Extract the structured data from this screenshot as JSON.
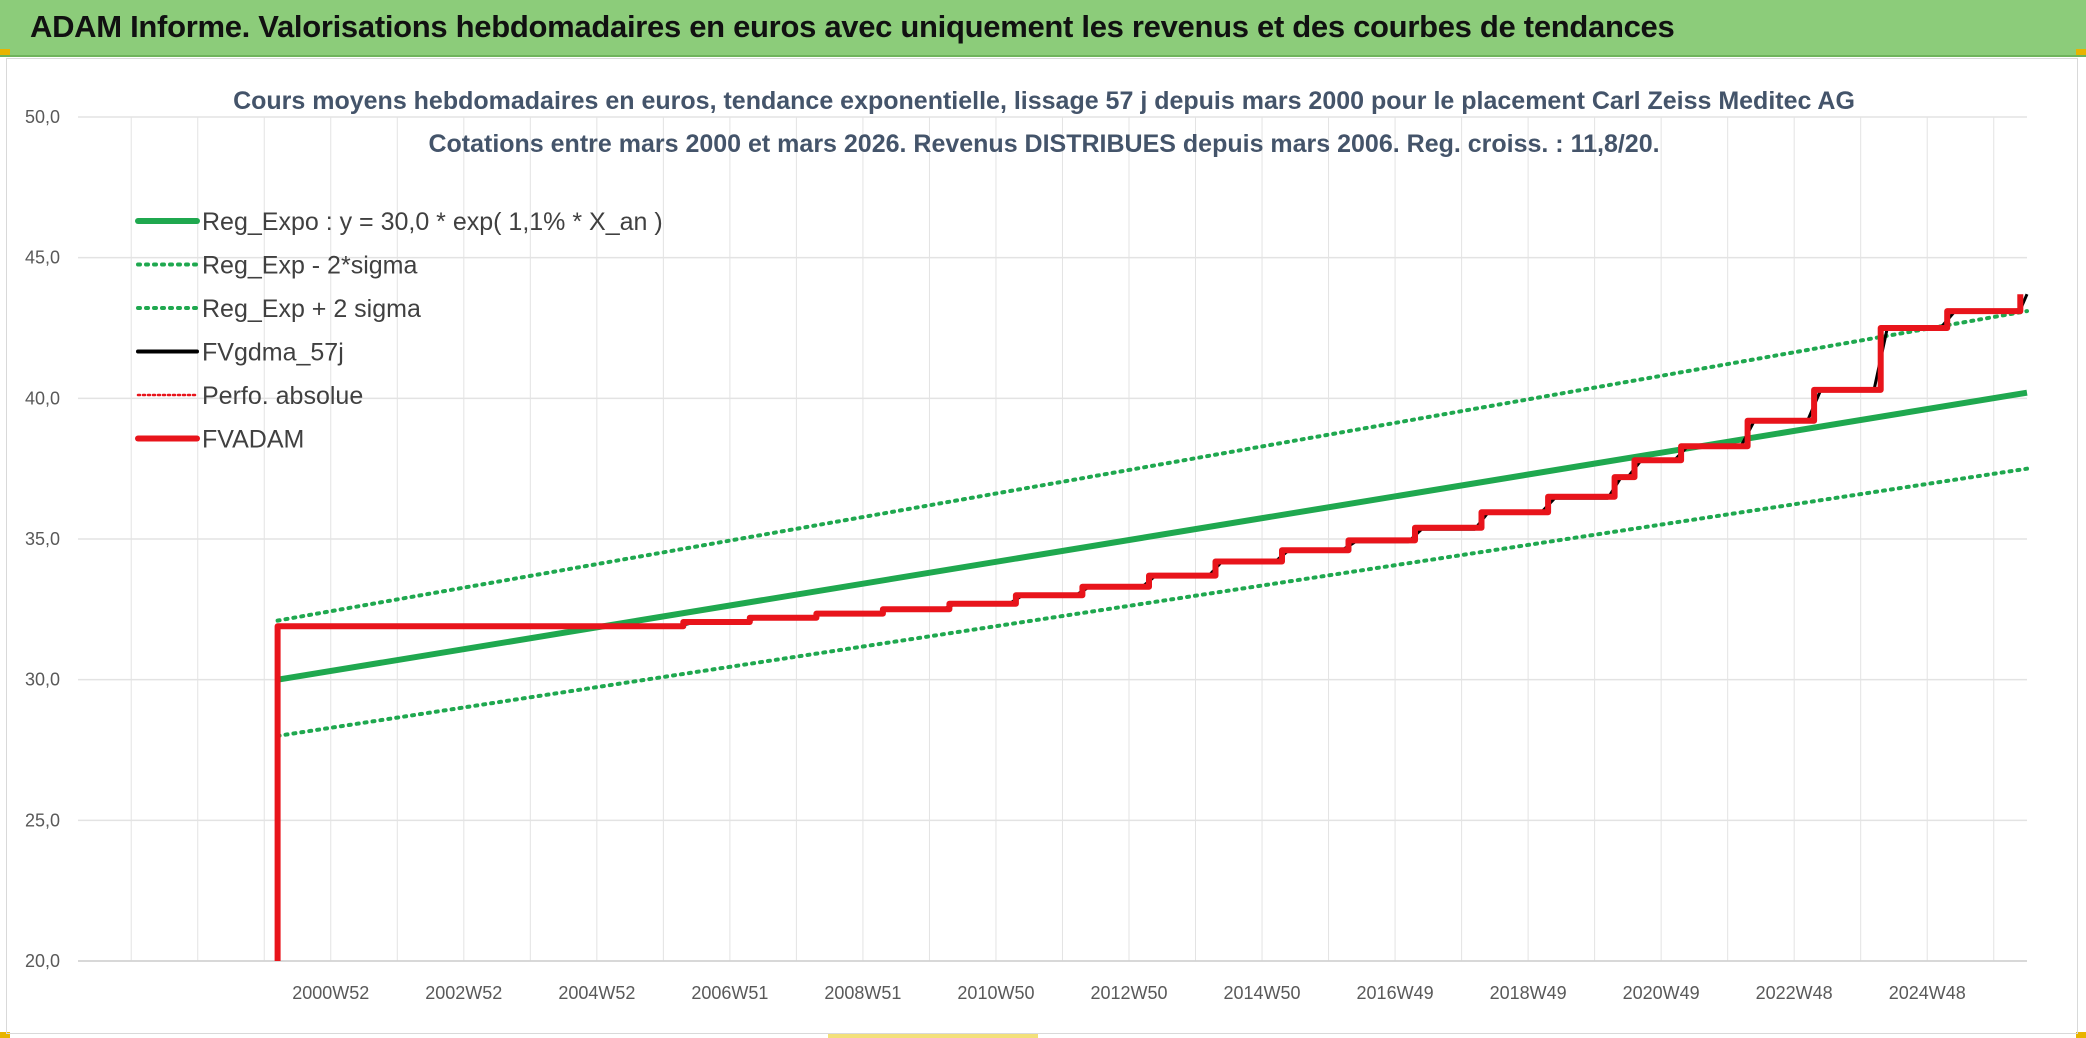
{
  "header": {
    "title": "ADAM Informe. Valorisations hebdomadaires en euros avec uniquement les revenus et des courbes de tendances"
  },
  "colors": {
    "header_bg": "#8ccc7a",
    "reg_expo": "#1fa84f",
    "fvgdma": "#000000",
    "fvadam": "#e8141b",
    "perfo": "#e8141b",
    "grid": "#e3e3e3"
  },
  "chart_data": {
    "type": "line",
    "title": "Cours moyens hebdomadaires en euros, tendance exponentielle, lissage 57 j depuis mars 2000 pour le placement Carl Zeiss Meditec AG",
    "subtitle": "Cotations entre mars 2000 et mars 2026. Revenus DISTRIBUES depuis mars 2006. Reg. croiss. : 11,8/20.",
    "xlabel": "",
    "ylabel": "",
    "xlim": [
      1997.2,
      2026.5
    ],
    "ylim": [
      20,
      50
    ],
    "y_ticks": [
      "20,0",
      "25,0",
      "30,0",
      "35,0",
      "40,0",
      "45,0",
      "50,0"
    ],
    "x_tick_labels": [
      {
        "label": "2000W52",
        "x": 2001.0
      },
      {
        "label": "2002W52",
        "x": 2003.0
      },
      {
        "label": "2004W52",
        "x": 2005.0
      },
      {
        "label": "2006W51",
        "x": 2007.0
      },
      {
        "label": "2008W51",
        "x": 2009.0
      },
      {
        "label": "2010W50",
        "x": 2011.0
      },
      {
        "label": "2012W50",
        "x": 2013.0
      },
      {
        "label": "2014W50",
        "x": 2015.0
      },
      {
        "label": "2016W49",
        "x": 2017.0
      },
      {
        "label": "2018W49",
        "x": 2019.0
      },
      {
        "label": "2020W49",
        "x": 2021.0
      },
      {
        "label": "2022W48",
        "x": 2023.0
      },
      {
        "label": "2024W48",
        "x": 2025.0
      }
    ],
    "grid": true,
    "legend_position": "top-left",
    "series": [
      {
        "name": "Reg_Expo : y = 30,0 * exp( 1,1% *  X_an )",
        "style": "solid-thick",
        "color": "#1fa84f",
        "x": [
          2000.2,
          2026.5
        ],
        "y": [
          30.0,
          40.2
        ]
      },
      {
        "name": "Reg_Exp - 2*sigma",
        "style": "dotted",
        "color": "#1fa84f",
        "x": [
          2000.2,
          2026.5
        ],
        "y": [
          28.0,
          37.5
        ]
      },
      {
        "name": "Reg_Exp + 2 sigma",
        "style": "dotted",
        "color": "#1fa84f",
        "x": [
          2000.2,
          2026.5
        ],
        "y": [
          32.1,
          43.1
        ]
      },
      {
        "name": "FVgdma_57j",
        "style": "solid",
        "color": "#000000",
        "x": [
          2000.2,
          2000.2,
          2006.2,
          2006.4,
          2007.2,
          2007.4,
          2008.2,
          2008.4,
          2009.2,
          2009.4,
          2010.2,
          2010.4,
          2011.2,
          2011.4,
          2012.2,
          2012.4,
          2013.2,
          2013.4,
          2014.2,
          2014.4,
          2015.2,
          2015.4,
          2016.2,
          2016.4,
          2017.2,
          2017.4,
          2018.2,
          2018.4,
          2019.2,
          2019.4,
          2020.2,
          2020.4,
          2020.5,
          2020.7,
          2021.2,
          2021.4,
          2022.2,
          2022.4,
          2023.2,
          2023.4,
          2024.2,
          2024.4,
          2025.2,
          2025.4,
          2026.4,
          2026.5
        ],
        "y": [
          20.0,
          31.9,
          31.9,
          32.0,
          32.0,
          32.2,
          32.2,
          32.35,
          32.35,
          32.5,
          32.5,
          32.7,
          32.7,
          33.0,
          33.0,
          33.3,
          33.3,
          33.7,
          33.7,
          34.2,
          34.2,
          34.6,
          34.6,
          34.9,
          34.9,
          35.35,
          35.35,
          35.95,
          35.95,
          36.45,
          36.45,
          37.2,
          37.2,
          37.8,
          37.8,
          38.3,
          38.3,
          39.2,
          39.2,
          40.3,
          40.3,
          42.5,
          42.5,
          43.05,
          43.15,
          43.7
        ]
      },
      {
        "name": "Perfo. absolue",
        "style": "dotted",
        "color": "#e8141b",
        "x": [],
        "y": []
      },
      {
        "name": "FVADAM",
        "style": "solid-thick",
        "color": "#e8141b",
        "x": [
          2000.2,
          2000.2,
          2006.3,
          2006.3,
          2007.3,
          2007.3,
          2008.3,
          2008.3,
          2009.3,
          2009.3,
          2010.3,
          2010.3,
          2011.3,
          2011.3,
          2012.3,
          2012.3,
          2013.3,
          2013.3,
          2014.3,
          2014.3,
          2015.3,
          2015.3,
          2016.3,
          2016.3,
          2017.3,
          2017.3,
          2018.3,
          2018.3,
          2019.3,
          2019.3,
          2020.3,
          2020.3,
          2020.6,
          2020.6,
          2021.3,
          2021.3,
          2022.3,
          2022.3,
          2023.3,
          2023.3,
          2024.3,
          2024.3,
          2025.3,
          2025.3,
          2026.4,
          2026.4
        ],
        "y": [
          20.0,
          31.9,
          31.9,
          32.05,
          32.05,
          32.2,
          32.2,
          32.35,
          32.35,
          32.5,
          32.5,
          32.7,
          32.7,
          33.0,
          33.0,
          33.3,
          33.3,
          33.7,
          33.7,
          34.2,
          34.2,
          34.6,
          34.6,
          34.95,
          34.95,
          35.4,
          35.4,
          35.95,
          35.95,
          36.5,
          36.5,
          37.2,
          37.2,
          37.8,
          37.8,
          38.3,
          38.3,
          39.2,
          39.2,
          40.3,
          40.3,
          42.5,
          42.5,
          43.1,
          43.1,
          43.7
        ]
      }
    ]
  }
}
